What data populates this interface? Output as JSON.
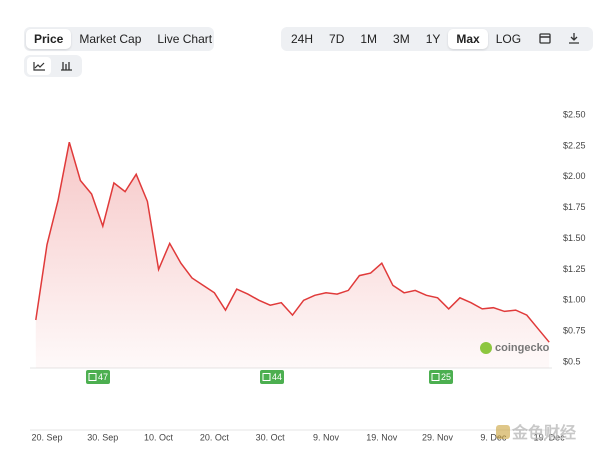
{
  "toolbar": {
    "tabs": [
      "Price",
      "Market Cap",
      "Live Chart"
    ],
    "ranges": [
      "24H",
      "7D",
      "1M",
      "3M",
      "1Y",
      "Max",
      "LOG"
    ]
  },
  "chart_data": {
    "type": "line",
    "area": true,
    "color": "#e03a3a",
    "categories": [
      null,
      "20. Sep",
      null,
      null,
      null,
      null,
      "30. Sep",
      null,
      null,
      null,
      null,
      "10. Oct",
      null,
      null,
      null,
      null,
      "20. Oct",
      null,
      null,
      null,
      null,
      "30. Oct",
      null,
      null,
      null,
      null,
      "9. Nov",
      null,
      null,
      null,
      null,
      "19. Nov",
      null,
      null,
      null,
      null,
      "29. Nov",
      null,
      null,
      null,
      null,
      "9. Dec",
      null,
      null,
      null,
      null,
      "19. Dec"
    ],
    "values": [
      0.84,
      1.45,
      1.81,
      2.28,
      1.97,
      1.86,
      1.6,
      1.95,
      1.88,
      2.02,
      1.8,
      1.25,
      1.46,
      1.3,
      1.18,
      1.12,
      1.06,
      0.92,
      1.09,
      1.05,
      1.0,
      0.96,
      0.98,
      0.88,
      1.0,
      1.04,
      1.06,
      1.05,
      1.08,
      1.2,
      1.22,
      1.3,
      1.12,
      1.06,
      1.08,
      1.04,
      1.02,
      0.93,
      1.02,
      0.98,
      0.93,
      0.94,
      0.91,
      0.92,
      0.88,
      0.77,
      0.66
    ],
    "ylim": [
      0.5,
      2.5
    ],
    "yticks": [
      {
        "value": 0.5,
        "label": "$0.5"
      },
      {
        "value": 0.75,
        "label": "$0.75"
      },
      {
        "value": 1,
        "label": "$1.00"
      },
      {
        "value": 1.25,
        "label": "$1.25"
      },
      {
        "value": 1.5,
        "label": "$1.50"
      },
      {
        "value": 1.75,
        "label": "$1.75"
      },
      {
        "value": 2,
        "label": "$2.00"
      },
      {
        "value": 2.25,
        "label": "$2.25"
      },
      {
        "value": 2.5,
        "label": "$2.50"
      }
    ],
    "grid": false,
    "annotations": [
      "47",
      "44",
      "25"
    ]
  },
  "watermarks": [
    "coingecko",
    "金色财经"
  ]
}
